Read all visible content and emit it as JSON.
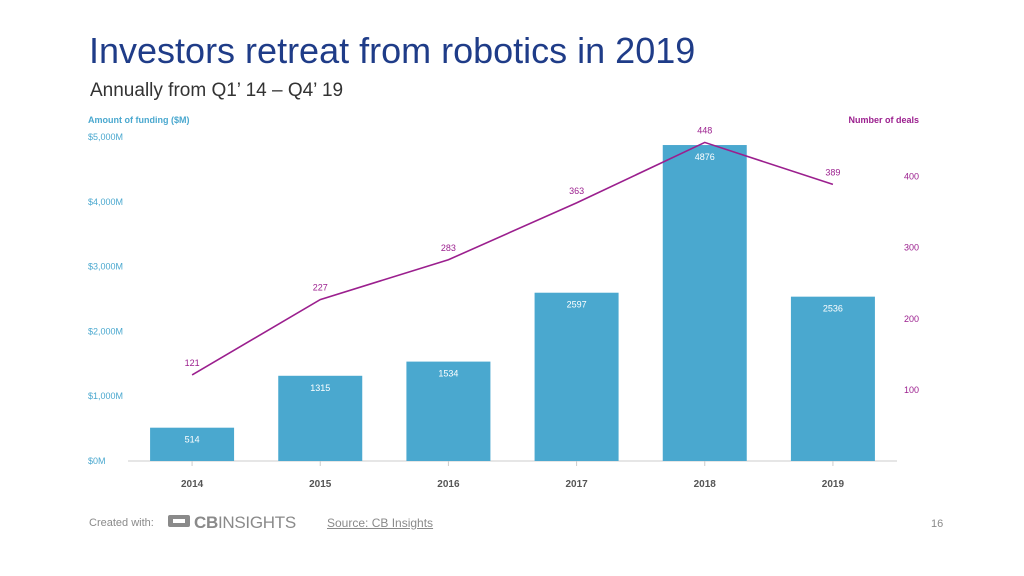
{
  "header": {
    "title": "Investors retreat from robotics in 2019",
    "subtitle": "Annually from Q1’ 14 – Q4’ 19"
  },
  "chart_data": {
    "type": "bar",
    "categories": [
      "2014",
      "2015",
      "2016",
      "2017",
      "2018",
      "2019"
    ],
    "series": [
      {
        "name": "Amount of funding ($M)",
        "type": "bar",
        "axis": "left",
        "values": [
          514,
          1315,
          1534,
          2597,
          4876,
          2536
        ]
      },
      {
        "name": "Number of deals",
        "type": "line",
        "axis": "right",
        "values": [
          121,
          227,
          283,
          363,
          448,
          389
        ]
      }
    ],
    "ylabel_left": "Amount of funding ($M)",
    "ylabel_right": "Number of deals",
    "ylim_left": [
      0,
      5000
    ],
    "ylim_right": [
      0,
      450
    ],
    "yticks_left": [
      "$0M",
      "$1,000M",
      "$2,000M",
      "$3,000M",
      "$4,000M",
      "$5,000M"
    ],
    "yticks_right": [
      "100",
      "200",
      "300",
      "400"
    ],
    "grid": false,
    "colors": {
      "bar": "#4aa8cf",
      "line": "#9b1f8e",
      "left_axis_text": "#4aa8cf",
      "right_axis_text": "#9b1f8e",
      "title": "#1f3c88"
    }
  },
  "footer": {
    "created_with": "Created with:",
    "logo_text_bold": "CB",
    "logo_text": "INSIGHTS",
    "source": "Source: CB Insights",
    "page_number": "16"
  }
}
